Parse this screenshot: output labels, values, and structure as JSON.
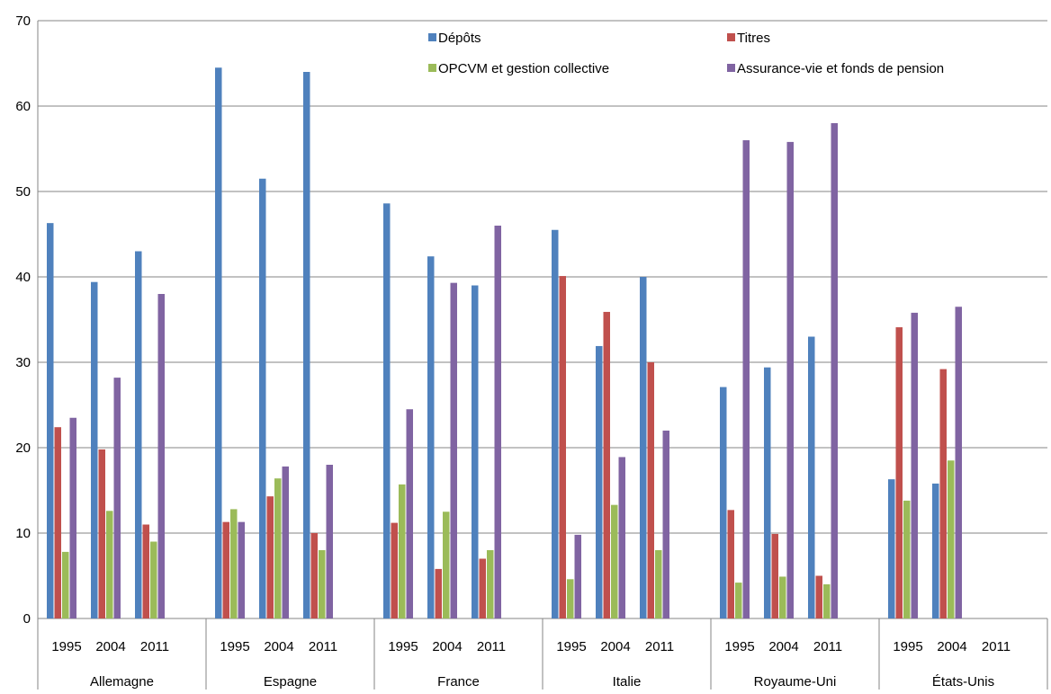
{
  "chart_data": {
    "type": "bar",
    "title": "",
    "xlabel": "",
    "ylabel": "",
    "ylim": [
      0,
      70
    ],
    "yticks": [
      0,
      10,
      20,
      30,
      40,
      50,
      60,
      70
    ],
    "grid": true,
    "legend_position": "top-right",
    "groups": [
      {
        "name": "Allemagne",
        "years": [
          "1995",
          "2004",
          "2011"
        ]
      },
      {
        "name": "Espagne",
        "years": [
          "1995",
          "2004",
          "2011"
        ]
      },
      {
        "name": "France",
        "years": [
          "1995",
          "2004",
          "2011"
        ]
      },
      {
        "name": "Italie",
        "years": [
          "1995",
          "2004",
          "2011"
        ]
      },
      {
        "name": "Royaume-Uni",
        "years": [
          "1995",
          "2004",
          "2011"
        ]
      },
      {
        "name": "États-Unis",
        "years": [
          "1995",
          "2004",
          "2011"
        ]
      }
    ],
    "series": [
      {
        "name": "Dépôts",
        "color": "#4F81BD",
        "values": [
          46.3,
          39.4,
          43.0,
          64.5,
          51.5,
          64.0,
          48.6,
          42.4,
          39.0,
          45.5,
          31.9,
          40.0,
          27.1,
          29.4,
          33.0,
          16.3,
          15.8,
          null
        ]
      },
      {
        "name": "Titres",
        "color": "#C0504D",
        "values": [
          22.4,
          19.8,
          11.0,
          11.3,
          14.3,
          10.0,
          11.2,
          5.8,
          7.0,
          40.1,
          35.9,
          30.0,
          12.7,
          9.9,
          5.0,
          34.1,
          29.2,
          null
        ]
      },
      {
        "name": "OPCVM et gestion collective",
        "color": "#9BBB59",
        "values": [
          7.8,
          12.6,
          9.0,
          12.8,
          16.4,
          8.0,
          15.7,
          12.5,
          8.0,
          4.6,
          13.3,
          8.0,
          4.2,
          4.9,
          4.0,
          13.8,
          18.5,
          null
        ]
      },
      {
        "name": "Assurance-vie et fonds de pension",
        "color": "#8064A2",
        "values": [
          23.5,
          28.2,
          38.0,
          11.3,
          17.8,
          18.0,
          24.5,
          39.3,
          46.0,
          9.8,
          18.9,
          22.0,
          56.0,
          55.8,
          58.0,
          35.8,
          36.5,
          null
        ]
      }
    ]
  }
}
